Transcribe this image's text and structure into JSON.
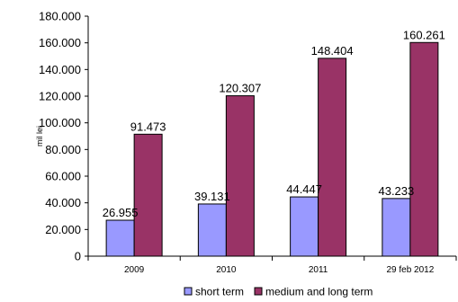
{
  "chart_data": {
    "type": "bar",
    "title": "",
    "xlabel": "",
    "ylabel": "mil lei",
    "ylim": [
      0,
      180000
    ],
    "y_ticks": [
      "0",
      "20.000",
      "40.000",
      "60.000",
      "80.000",
      "100.000",
      "120.000",
      "140.000",
      "160.000",
      "180.000"
    ],
    "categories": [
      "2009",
      "2010",
      "2011",
      "29 feb 2012"
    ],
    "series": [
      {
        "name": "short term",
        "color": "#9999ff",
        "values": [
          26955,
          39131,
          44447,
          43233
        ],
        "labels": [
          "26.955",
          "39.131",
          "44.447",
          "43.233"
        ]
      },
      {
        "name": "medium and long term",
        "color": "#993366",
        "values": [
          91473,
          120307,
          148404,
          160261
        ],
        "labels": [
          "91.473",
          "120.307",
          "148.404",
          "160.261"
        ]
      }
    ],
    "grid": false,
    "legend_position": "bottom"
  }
}
